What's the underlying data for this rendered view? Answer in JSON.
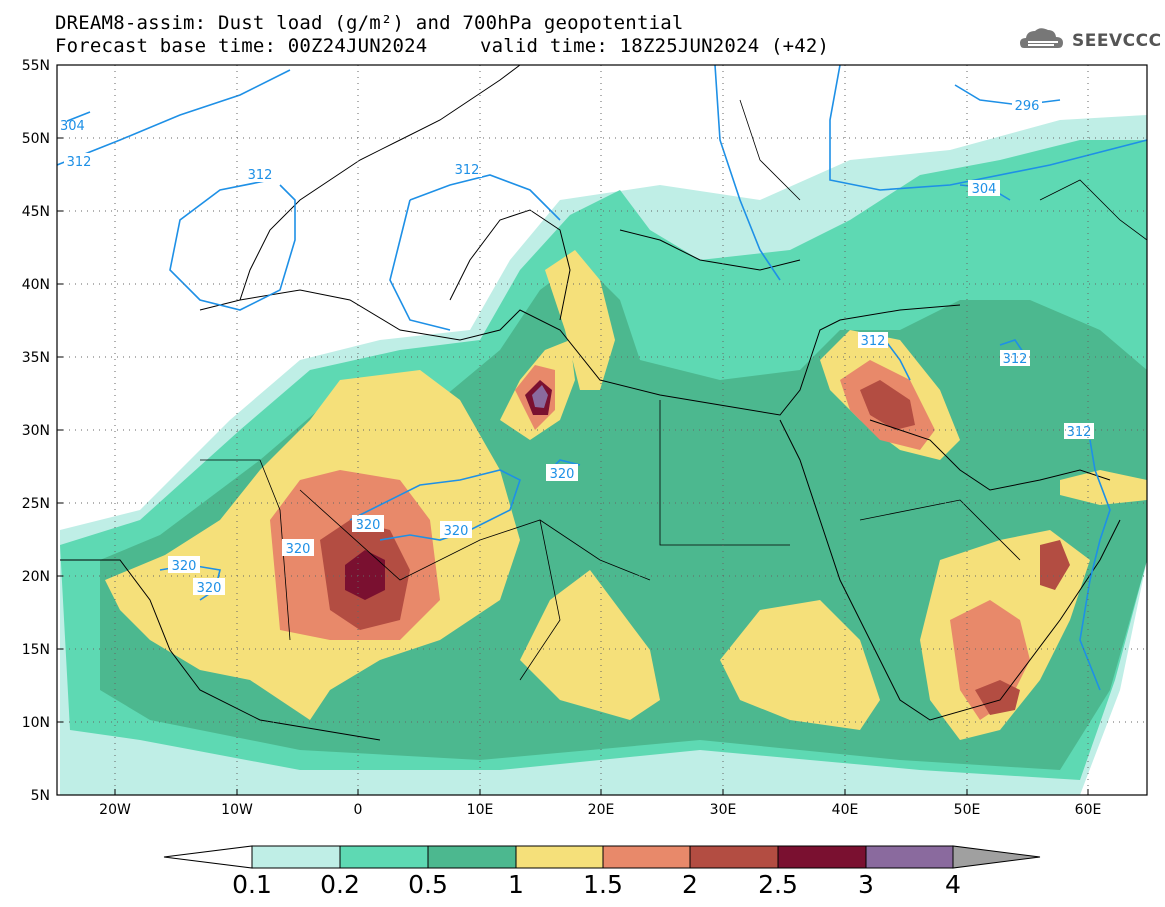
{
  "title": {
    "line1": "DREAM8-assim: Dust load (g/m²) and 700hPa geopotential",
    "line2_left": "Forecast base time: 00Z24JUN2024",
    "line2_right": "valid time: 18Z25JUN2024 (+42)"
  },
  "logo": {
    "text": "SEEVCCC",
    "icon": "cloud-icon"
  },
  "map": {
    "lat_labels": [
      "55N",
      "50N",
      "45N",
      "40N",
      "35N",
      "30N",
      "25N",
      "20N",
      "15N",
      "10N",
      "5N"
    ],
    "lon_labels": [
      "20W",
      "10W",
      "0",
      "10E",
      "20E",
      "30E",
      "40E",
      "50E",
      "60E"
    ],
    "contour_labels": [
      "312",
      "312",
      "312",
      "296",
      "304",
      "320",
      "320",
      "320",
      "320",
      "320",
      "320",
      "312",
      "312",
      "312",
      "304"
    ],
    "colors": {
      "ocean": "#ffffff",
      "c01": "#bfeee6",
      "c02": "#5ed9b3",
      "c05": "#4cb88f",
      "c1": "#f5e07a",
      "c15": "#e8896a",
      "c2": "#b34d42",
      "c25": "#7a1030",
      "c3": "#8a6a9e",
      "contour": "#1e90e6"
    }
  },
  "colorbar": {
    "labels": [
      "0.1",
      "0.2",
      "0.5",
      "1",
      "1.5",
      "2",
      "2.5",
      "3",
      "4"
    ],
    "colors": [
      "#ffffff",
      "#bfeee6",
      "#5ed9b3",
      "#4cb88f",
      "#f5e07a",
      "#e8896a",
      "#b34d42",
      "#7a1030",
      "#8a6a9e",
      "#a0a0a0"
    ]
  }
}
